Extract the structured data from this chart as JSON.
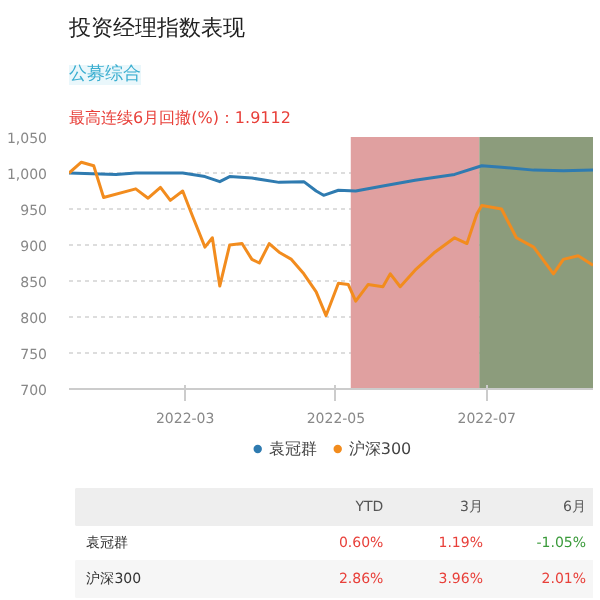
{
  "chart_data": {
    "type": "line",
    "title": "投资经理指数表现",
    "subtitle": "公募综合",
    "annotations": [
      "最高连续6月回撤(%)：1.9112",
      "YTD",
      "3月",
      "6月",
      "0.60%",
      "1.19%",
      "-1.05%",
      "2.86%",
      "3.96%",
      "2.01%"
    ],
    "xlim": [
      "2022-01-13",
      "2022-08-13"
    ],
    "xticks": [
      "2022-03",
      "2022-05",
      "2022-07"
    ],
    "ylim": [
      700,
      1050
    ],
    "yticks": [
      700,
      750,
      800,
      850,
      900,
      950,
      {
        "value": 1000,
        "label": "1,000"
      },
      {
        "value": 1050,
        "label": "1,050"
      }
    ],
    "grid": "y",
    "legend": "bottom",
    "marker": "none",
    "line_style": "solid",
    "bands": [
      {
        "axis": "x",
        "from": "2022-05-07",
        "to": "2022-06-28",
        "color": "#e0a0a0"
      },
      {
        "axis": "x",
        "from": "2022-06-28",
        "to": "2022-08-13",
        "color": "#8c9c7c"
      }
    ],
    "series": [
      {
        "name": "袁冠群",
        "color": "#2f7bb0",
        "x": [
          "2022-01-13",
          "2022-02-01",
          "2022-02-09",
          "2022-02-28",
          "2022-03-09",
          "2022-03-15",
          "2022-03-19",
          "2022-03-28",
          "2022-04-08",
          "2022-04-18",
          "2022-04-23",
          "2022-04-26",
          "2022-05-02",
          "2022-05-09",
          "2022-05-20",
          "2022-06-02",
          "2022-06-18",
          "2022-06-29",
          "2022-07-07",
          "2022-07-20",
          "2022-08-01",
          "2022-08-13"
        ],
        "values": [
          1000,
          998,
          1000,
          1000,
          995,
          988,
          995,
          993,
          987,
          988,
          975,
          969,
          976,
          975,
          982,
          990,
          998,
          1010,
          1008,
          1004,
          1003,
          1004
        ]
      },
      {
        "name": "沪深300",
        "color": "#f28c1e",
        "x": [
          "2022-01-13",
          "2022-01-18",
          "2022-01-23",
          "2022-01-27",
          "2022-02-09",
          "2022-02-14",
          "2022-02-19",
          "2022-02-23",
          "2022-02-28",
          "2022-03-04",
          "2022-03-09",
          "2022-03-12",
          "2022-03-15",
          "2022-03-19",
          "2022-03-24",
          "2022-03-28",
          "2022-03-31",
          "2022-04-04",
          "2022-04-08",
          "2022-04-13",
          "2022-04-18",
          "2022-04-23",
          "2022-04-27",
          "2022-05-02",
          "2022-05-06",
          "2022-05-09",
          "2022-05-14",
          "2022-05-20",
          "2022-05-23",
          "2022-05-27",
          "2022-06-02",
          "2022-06-10",
          "2022-06-18",
          "2022-06-23",
          "2022-06-27",
          "2022-06-29",
          "2022-07-07",
          "2022-07-13",
          "2022-07-20",
          "2022-07-28",
          "2022-08-01",
          "2022-08-07",
          "2022-08-13"
        ],
        "values": [
          1000,
          1015,
          1010,
          966,
          978,
          965,
          980,
          962,
          975,
          940,
          897,
          910,
          843,
          900,
          902,
          880,
          875,
          902,
          890,
          880,
          860,
          835,
          802,
          847,
          845,
          822,
          845,
          842,
          860,
          842,
          865,
          890,
          910,
          902,
          943,
          955,
          950,
          910,
          897,
          860,
          880,
          885,
          872
        ]
      }
    ]
  }
}
